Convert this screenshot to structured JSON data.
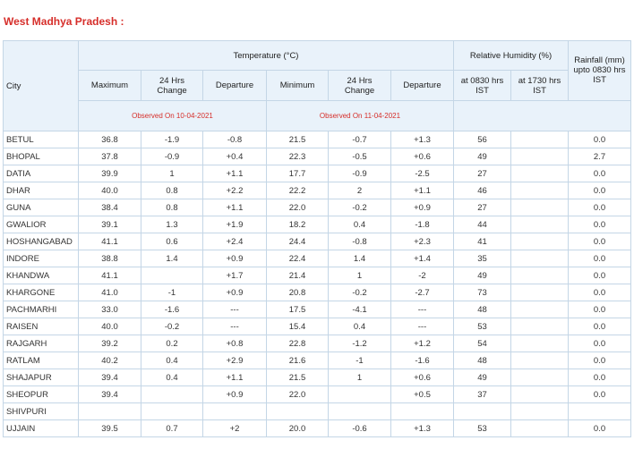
{
  "title": "West Madhya Pradesh :",
  "table": {
    "headers": {
      "city": "City",
      "temperature": "Temperature (°C)",
      "relative_humidity": "Relative Humidity (%)",
      "rainfall": "Rainfall (mm) upto 0830 hrs IST",
      "columns": [
        "Maximum",
        "24 Hrs Change",
        "Departure",
        "Minimum",
        "24 Hrs Change",
        "Departure",
        "at 0830 hrs IST",
        "at 1730 hrs IST"
      ],
      "observed": [
        "Observed On 10-04-2021",
        "Observed On 11-04-2021"
      ]
    },
    "rows": [
      [
        "BETUL",
        "36.8",
        "-1.9",
        "-0.8",
        "21.5",
        "-0.7",
        "+1.3",
        "56",
        null,
        "0.0"
      ],
      [
        "BHOPAL",
        "37.8",
        "-0.9",
        "+0.4",
        "22.3",
        "-0.5",
        "+0.6",
        "49",
        null,
        "2.7"
      ],
      [
        "DATIA",
        "39.9",
        "1",
        "+1.1",
        "17.7",
        "-0.9",
        "-2.5",
        "27",
        null,
        "0.0"
      ],
      [
        "DHAR",
        "40.0",
        "0.8",
        "+2.2",
        "22.2",
        "2",
        "+1.1",
        "46",
        null,
        "0.0"
      ],
      [
        "GUNA",
        "38.4",
        "0.8",
        "+1.1",
        "22.0",
        "-0.2",
        "+0.9",
        "27",
        null,
        "0.0"
      ],
      [
        "GWALIOR",
        "39.1",
        "1.3",
        "+1.9",
        "18.2",
        "0.4",
        "-1.8",
        "44",
        null,
        "0.0"
      ],
      [
        "HOSHANGABAD",
        "41.1",
        "0.6",
        "+2.4",
        "24.4",
        "-0.8",
        "+2.3",
        "41",
        null,
        "0.0"
      ],
      [
        "INDORE",
        "38.8",
        "1.4",
        "+0.9",
        "22.4",
        "1.4",
        "+1.4",
        "35",
        null,
        "0.0"
      ],
      [
        "KHANDWA",
        "41.1",
        null,
        "+1.7",
        "21.4",
        "1",
        "-2",
        "49",
        null,
        "0.0"
      ],
      [
        "KHARGONE",
        "41.0",
        "-1",
        "+0.9",
        "20.8",
        "-0.2",
        "-2.7",
        "73",
        null,
        "0.0"
      ],
      [
        "PACHMARHI",
        "33.0",
        "-1.6",
        "---",
        "17.5",
        "-4.1",
        "---",
        "48",
        null,
        "0.0"
      ],
      [
        "RAISEN",
        "40.0",
        "-0.2",
        "---",
        "15.4",
        "0.4",
        "---",
        "53",
        null,
        "0.0"
      ],
      [
        "RAJGARH",
        "39.2",
        "0.2",
        "+0.8",
        "22.8",
        "-1.2",
        "+1.2",
        "54",
        null,
        "0.0"
      ],
      [
        "RATLAM",
        "40.2",
        "0.4",
        "+2.9",
        "21.6",
        "-1",
        "-1.6",
        "48",
        null,
        "0.0"
      ],
      [
        "SHAJAPUR",
        "39.4",
        "0.4",
        "+1.1",
        "21.5",
        "1",
        "+0.6",
        "49",
        null,
        "0.0"
      ],
      [
        "SHEOPUR",
        "39.4",
        null,
        "+0.9",
        "22.0",
        null,
        "+0.5",
        "37",
        null,
        "0.0"
      ],
      [
        "SHIVPURI",
        null,
        null,
        null,
        null,
        null,
        null,
        null,
        null,
        null
      ],
      [
        "UJJAIN",
        "39.5",
        "0.7",
        "+2",
        "20.0",
        "-0.6",
        "+1.3",
        "53",
        null,
        "0.0"
      ]
    ]
  }
}
